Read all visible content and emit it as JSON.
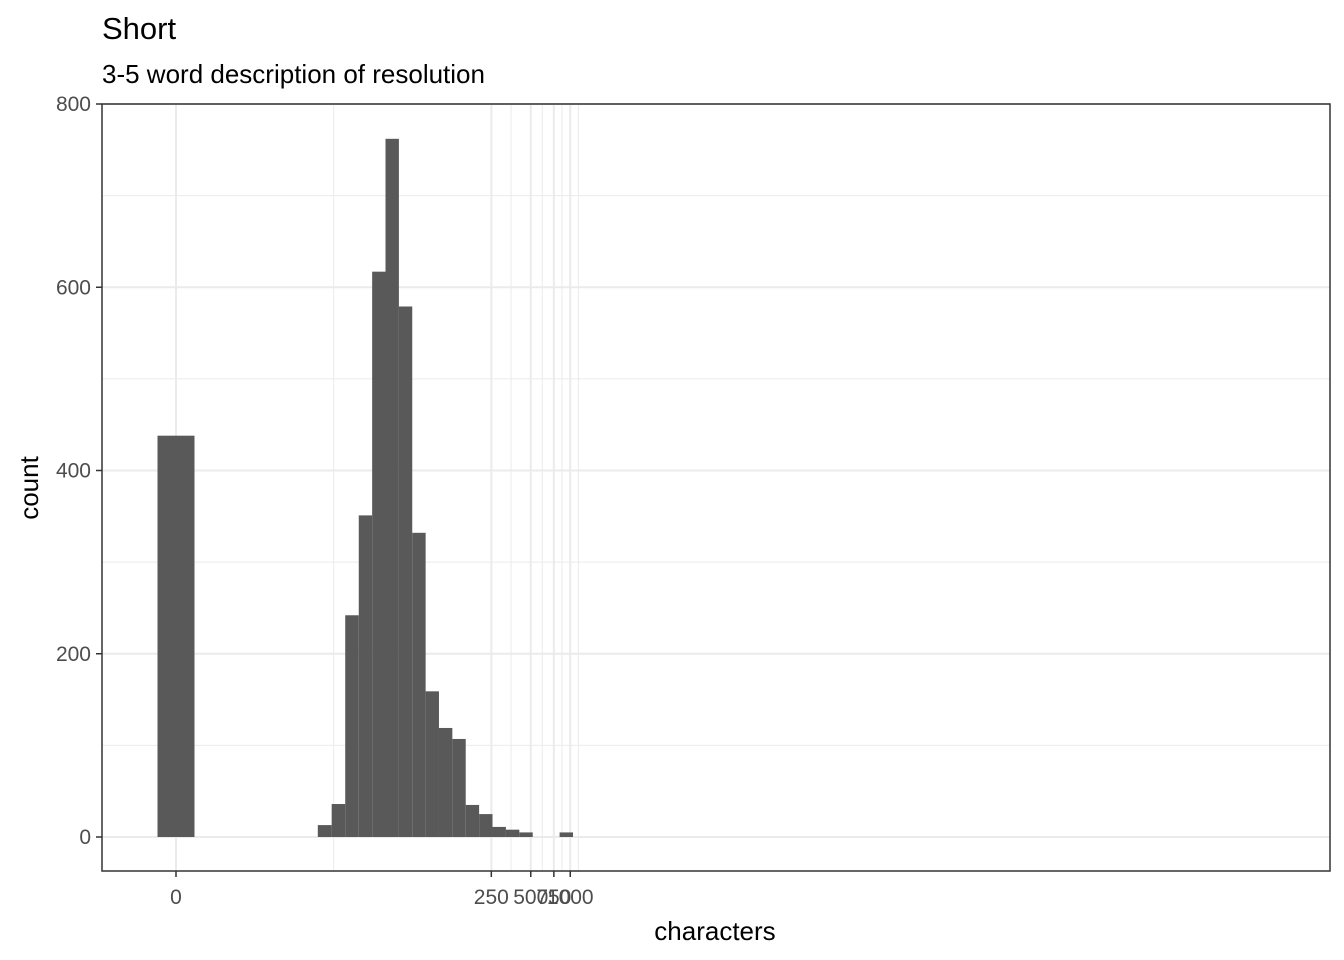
{
  "chart_data": {
    "type": "bar",
    "title": "Short",
    "subtitle": "3-5 word description of resolution",
    "xlabel": "characters",
    "ylabel": "count",
    "x_scale": "pseudo-log (log(1+x))",
    "xlim": [
      0,
      1050
    ],
    "ylim": [
      0,
      800
    ],
    "grid": true,
    "bar_color": "#595959",
    "x_ticks": [
      {
        "value": 0,
        "label": "0"
      },
      {
        "value": 250,
        "label": "250"
      },
      {
        "value": 500,
        "label": "500"
      },
      {
        "value": 750,
        "label": "750"
      },
      {
        "value": 1000,
        "label": "1000"
      }
    ],
    "y_ticks": [
      {
        "value": 0,
        "label": "0"
      },
      {
        "value": 200,
        "label": "200"
      },
      {
        "value": 400,
        "label": "400"
      },
      {
        "value": 600,
        "label": "600"
      },
      {
        "value": 800,
        "label": "800"
      }
    ],
    "bins": [
      {
        "x_start": 0,
        "x_end": 0.5,
        "count": 438
      },
      {
        "x_start": 11.0,
        "x_end": 14.3,
        "count": 13
      },
      {
        "x_start": 14.3,
        "x_end": 18.4,
        "count": 36
      },
      {
        "x_start": 18.4,
        "x_end": 23.6,
        "count": 242
      },
      {
        "x_start": 23.6,
        "x_end": 30.1,
        "count": 351
      },
      {
        "x_start": 30.1,
        "x_end": 38.3,
        "count": 617
      },
      {
        "x_start": 38.3,
        "x_end": 48.7,
        "count": 762
      },
      {
        "x_start": 48.7,
        "x_end": 61.8,
        "count": 579
      },
      {
        "x_start": 61.8,
        "x_end": 78.4,
        "count": 332
      },
      {
        "x_start": 78.4,
        "x_end": 99.3,
        "count": 159
      },
      {
        "x_start": 99.3,
        "x_end": 125.8,
        "count": 119
      },
      {
        "x_start": 125.8,
        "x_end": 159.3,
        "count": 107
      },
      {
        "x_start": 159.3,
        "x_end": 201.7,
        "count": 35
      },
      {
        "x_start": 201.7,
        "x_end": 255.3,
        "count": 25
      },
      {
        "x_start": 255.3,
        "x_end": 323.2,
        "count": 11
      },
      {
        "x_start": 323.2,
        "x_end": 409.1,
        "count": 8
      },
      {
        "x_start": 409.1,
        "x_end": 517.8,
        "count": 5
      },
      {
        "x_start": 517.8,
        "x_end": 655.3,
        "count": 0
      },
      {
        "x_start": 655.3,
        "x_end": 829.4,
        "count": 0
      },
      {
        "x_start": 829.4,
        "x_end": 1049.7,
        "count": 5
      }
    ]
  }
}
